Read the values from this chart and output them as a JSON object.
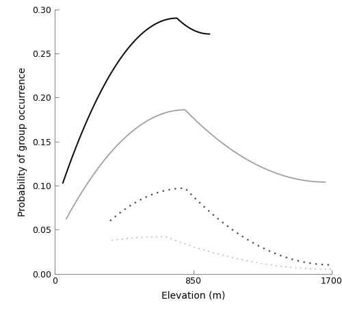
{
  "title": "",
  "xlabel": "Elevation (m)",
  "ylabel": "Probability of group occurrence",
  "xlim": [
    0,
    1700
  ],
  "ylim": [
    0.0,
    0.3
  ],
  "yticks": [
    0.0,
    0.05,
    0.1,
    0.15,
    0.2,
    0.25,
    0.3
  ],
  "xticks": [
    0,
    850,
    1700
  ],
  "background_color": "#ffffff",
  "lines": [
    {
      "label": "black_solid",
      "color": "#000000",
      "linestyle": "solid",
      "linewidth": 1.4,
      "x_start": 50,
      "x_end": 950,
      "peak_x": 750,
      "start_y": 0.103,
      "peak_y": 0.29,
      "end_y": 0.272
    },
    {
      "label": "gray_solid",
      "color": "#999999",
      "linestyle": "solid",
      "linewidth": 1.2,
      "x_start": 70,
      "x_end": 1660,
      "peak_x": 800,
      "start_y": 0.062,
      "peak_y": 0.186,
      "end_y": 0.104
    },
    {
      "label": "black_dotted",
      "color": "#444444",
      "linestyle": "dotted",
      "linewidth": 1.6,
      "x_start": 340,
      "x_end": 1700,
      "peak_x": 800,
      "start_y": 0.06,
      "peak_y": 0.097,
      "end_y": 0.01
    },
    {
      "label": "gray_dotted",
      "color": "#bbbbbb",
      "linestyle": "dotted",
      "linewidth": 1.3,
      "x_start": 350,
      "x_end": 1700,
      "peak_x": 680,
      "start_y": 0.038,
      "peak_y": 0.042,
      "end_y": 0.005
    }
  ]
}
